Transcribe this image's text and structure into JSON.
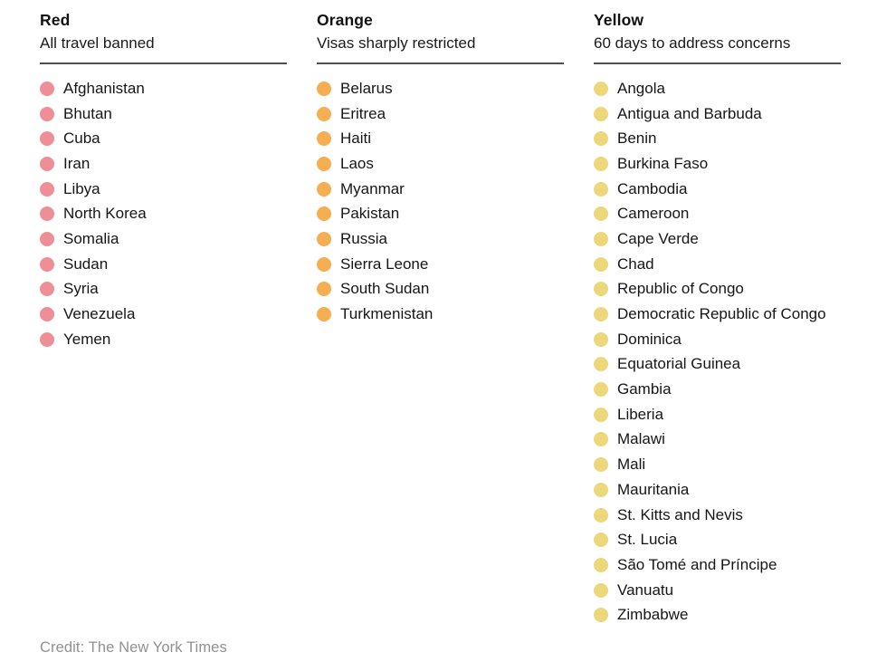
{
  "page": {
    "background": "#ffffff",
    "divider_color": "#4d4d4d"
  },
  "credit": "Credit: The New York Times",
  "groups": [
    {
      "title": "Red",
      "subtitle": "All travel banned",
      "dot_color": "#ee8e96",
      "countries": [
        "Afghanistan",
        "Bhutan",
        "Cuba",
        "Iran",
        "Libya",
        "North Korea",
        "Somalia",
        "Sudan",
        "Syria",
        "Venezuela",
        "Yemen"
      ]
    },
    {
      "title": "Orange",
      "subtitle": "Visas sharply restricted",
      "dot_color": "#f5ae51",
      "countries": [
        "Belarus",
        "Eritrea",
        "Haiti",
        "Laos",
        "Myanmar",
        "Pakistan",
        "Russia",
        "Sierra Leone",
        "South Sudan",
        "Turkmenistan"
      ]
    },
    {
      "title": "Yellow",
      "subtitle": "60 days to address concerns",
      "dot_color": "#ecd77a",
      "countries": [
        "Angola",
        "Antigua and Barbuda",
        "Benin",
        "Burkina Faso",
        "Cambodia",
        "Cameroon",
        "Cape Verde",
        "Chad",
        "Republic of Congo",
        "Democratic Republic of Congo",
        "Dominica",
        "Equatorial Guinea",
        "Gambia",
        "Liberia",
        "Malawi",
        "Mali",
        "Mauritania",
        "St. Kitts and Nevis",
        "St. Lucia",
        "São Tomé and Príncipe",
        "Vanuatu",
        "Zimbabwe"
      ]
    }
  ],
  "chart_data": {
    "type": "table",
    "title": "",
    "columns": [
      "Red",
      "Orange",
      "Yellow"
    ],
    "column_subtitles": [
      "All travel banned",
      "Visas sharply restricted",
      "60 days to address concerns"
    ],
    "series": [
      {
        "name": "Red — All travel banned",
        "values": [
          "Afghanistan",
          "Bhutan",
          "Cuba",
          "Iran",
          "Libya",
          "North Korea",
          "Somalia",
          "Sudan",
          "Syria",
          "Venezuela",
          "Yemen"
        ]
      },
      {
        "name": "Orange — Visas sharply restricted",
        "values": [
          "Belarus",
          "Eritrea",
          "Haiti",
          "Laos",
          "Myanmar",
          "Pakistan",
          "Russia",
          "Sierra Leone",
          "South Sudan",
          "Turkmenistan"
        ]
      },
      {
        "name": "Yellow — 60 days to address concerns",
        "values": [
          "Angola",
          "Antigua and Barbuda",
          "Benin",
          "Burkina Faso",
          "Cambodia",
          "Cameroon",
          "Cape Verde",
          "Chad",
          "Republic of Congo",
          "Democratic Republic of Congo",
          "Dominica",
          "Equatorial Guinea",
          "Gambia",
          "Liberia",
          "Malawi",
          "Mali",
          "Mauritania",
          "St. Kitts and Nevis",
          "St. Lucia",
          "São Tomé and Príncipe",
          "Vanuatu",
          "Zimbabwe"
        ]
      }
    ],
    "counts": {
      "Red": 11,
      "Orange": 10,
      "Yellow": 22
    },
    "legend_position": "column headers",
    "annotations": [
      "Credit: The New York Times"
    ]
  }
}
